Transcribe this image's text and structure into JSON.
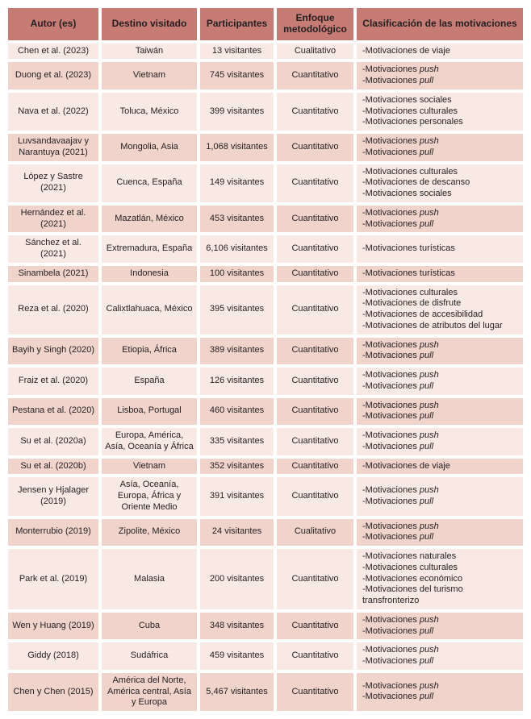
{
  "colors": {
    "header_bg": "#C67C74",
    "row_light": "#F9E9E4",
    "row_dark": "#F0D3CB",
    "text": "#231F20",
    "page_bg": "#FFFFFF"
  },
  "table": {
    "headers": [
      "Autor (es)",
      "Destino visitado",
      "Participantes",
      "Enfoque metodológico",
      "Clasificación de las motivaciones"
    ],
    "rows": [
      {
        "author": "Chen et al. (2023)",
        "destination": "Taiwán",
        "participants": "13 visitantes",
        "approach": "Cualitativo",
        "motivations": [
          [
            {
              "t": "-Motivaciones de viaje"
            }
          ]
        ]
      },
      {
        "author": "Duong et al. (2023)",
        "destination": "Vietnam",
        "participants": "745 visitantes",
        "approach": "Cuantitativo",
        "motivations": [
          [
            {
              "t": "-Motivaciones "
            },
            {
              "t": "push",
              "i": true
            }
          ],
          [
            {
              "t": "-Motivaciones "
            },
            {
              "t": "pull",
              "i": true
            }
          ]
        ]
      },
      {
        "author": "Nava et al. (2022)",
        "destination": "Toluca, México",
        "participants": "399 visitantes",
        "approach": "Cuantitativo",
        "motivations": [
          [
            {
              "t": "-Motivaciones sociales"
            }
          ],
          [
            {
              "t": "-Motivaciones culturales"
            }
          ],
          [
            {
              "t": "-Motivaciones personales"
            }
          ]
        ]
      },
      {
        "author": "Luvsandavaajav y Narantuya (2021)",
        "destination": "Mongolia, Asia",
        "participants": "1,068 visitantes",
        "approach": "Cuantitativo",
        "motivations": [
          [
            {
              "t": "-Motivaciones "
            },
            {
              "t": "push",
              "i": true
            }
          ],
          [
            {
              "t": "-Motivaciones "
            },
            {
              "t": "pull",
              "i": true
            }
          ]
        ]
      },
      {
        "author": "López y Sastre (2021)",
        "destination": "Cuenca, España",
        "participants": "149 visitantes",
        "approach": "Cuantitativo",
        "motivations": [
          [
            {
              "t": "-Motivaciones culturales"
            }
          ],
          [
            {
              "t": "-Motivaciones de descanso"
            }
          ],
          [
            {
              "t": "-Motivaciones sociales"
            }
          ]
        ]
      },
      {
        "author": "Hernández et al. (2021)",
        "destination": "Mazatlán, México",
        "participants": "453 visitantes",
        "approach": "Cuantitativo",
        "motivations": [
          [
            {
              "t": "-Motivaciones "
            },
            {
              "t": "push",
              "i": true
            }
          ],
          [
            {
              "t": "-Motivaciones "
            },
            {
              "t": "pull",
              "i": true
            }
          ]
        ]
      },
      {
        "author": "Sánchez et al. (2021)",
        "destination": "Extremadura, España",
        "participants": "6,106 visitantes",
        "approach": "Cuantitativo",
        "motivations": [
          [
            {
              "t": "-Motivaciones turísticas"
            }
          ]
        ]
      },
      {
        "author": "Sinambela (2021)",
        "destination": "Indonesia",
        "participants": "100 visitantes",
        "approach": "Cuantitativo",
        "motivations": [
          [
            {
              "t": "-Motivaciones turísticas"
            }
          ]
        ]
      },
      {
        "author": "Reza et al. (2020)",
        "destination": "Calixtlahuaca, México",
        "participants": "395 visitantes",
        "approach": "Cuantitativo",
        "motivations": [
          [
            {
              "t": "-Motivaciones culturales"
            }
          ],
          [
            {
              "t": "-Motivaciones de disfrute"
            }
          ],
          [
            {
              "t": "-Motivaciones de accesibilidad"
            }
          ],
          [
            {
              "t": "-Motivaciones de atributos del lugar"
            }
          ]
        ]
      },
      {
        "author": "Bayih y Singh (2020)",
        "destination": "Etiopia, África",
        "participants": "389 visitantes",
        "approach": "Cuantitativo",
        "motivations": [
          [
            {
              "t": "-Motivaciones "
            },
            {
              "t": "push",
              "i": true
            }
          ],
          [
            {
              "t": "-Motivaciones "
            },
            {
              "t": "pull",
              "i": true
            }
          ]
        ]
      },
      {
        "author": "Fraiz et al. (2020)",
        "destination": "España",
        "participants": "126 visitantes",
        "approach": "Cuantitativo",
        "motivations": [
          [
            {
              "t": "-Motivaciones "
            },
            {
              "t": "push",
              "i": true
            }
          ],
          [
            {
              "t": "-Motivaciones "
            },
            {
              "t": "pull",
              "i": true
            }
          ]
        ]
      },
      {
        "author": "Pestana et al. (2020)",
        "destination": "Lisboa, Portugal",
        "participants": "460 visitantes",
        "approach": "Cuantitativo",
        "motivations": [
          [
            {
              "t": "-Motivaciones "
            },
            {
              "t": "push",
              "i": true
            }
          ],
          [
            {
              "t": "-Motivaciones "
            },
            {
              "t": "pull",
              "i": true
            }
          ]
        ]
      },
      {
        "author": "Su et al. (2020a)",
        "destination": "Europa, América, Asía, Oceanía y África",
        "participants": "335 visitantes",
        "approach": "Cuantitativo",
        "motivations": [
          [
            {
              "t": "-Motivaciones "
            },
            {
              "t": "push",
              "i": true
            }
          ],
          [
            {
              "t": "-Motivaciones "
            },
            {
              "t": "pull",
              "i": true
            }
          ]
        ]
      },
      {
        "author": "Su et al. (2020b)",
        "destination": "Vietnam",
        "participants": "352 visitantes",
        "approach": "Cuantitativo",
        "motivations": [
          [
            {
              "t": "-Motivaciones de viaje"
            }
          ]
        ]
      },
      {
        "author": "Jensen y Hjalager (2019)",
        "destination": "Asía, Oceanía, Europa, África y Oriente Medio",
        "participants": "391 visitantes",
        "approach": "Cuantitativo",
        "motivations": [
          [
            {
              "t": "-Motivaciones "
            },
            {
              "t": "push",
              "i": true
            }
          ],
          [
            {
              "t": "-Motivaciones "
            },
            {
              "t": "pull",
              "i": true
            }
          ]
        ]
      },
      {
        "author": "Monterrubio (2019)",
        "destination": "Zipolite, México",
        "participants": "24 visitantes",
        "approach": "Cualitativo",
        "motivations": [
          [
            {
              "t": "-Motivaciones "
            },
            {
              "t": "push",
              "i": true
            }
          ],
          [
            {
              "t": "-Motivaciones "
            },
            {
              "t": "pull",
              "i": true
            }
          ]
        ]
      },
      {
        "author": "Park et al. (2019)",
        "destination": "Malasia",
        "participants": "200 visitantes",
        "approach": "Cuantitativo",
        "motivations": [
          [
            {
              "t": "-Motivaciones naturales"
            }
          ],
          [
            {
              "t": "-Motivaciones culturales"
            }
          ],
          [
            {
              "t": "-Motivaciones económico"
            }
          ],
          [
            {
              "t": "-Motivaciones del turismo transfronterizo"
            }
          ]
        ]
      },
      {
        "author": "Wen y Huang (2019)",
        "destination": "Cuba",
        "participants": "348 visitantes",
        "approach": "Cuantitativo",
        "motivations": [
          [
            {
              "t": "-Motivaciones "
            },
            {
              "t": "push",
              "i": true
            }
          ],
          [
            {
              "t": "-Motivaciones "
            },
            {
              "t": "pull",
              "i": true
            }
          ]
        ]
      },
      {
        "author": "Giddy (2018)",
        "destination": "Sudáfrica",
        "participants": "459 visitantes",
        "approach": "Cuantitativo",
        "motivations": [
          [
            {
              "t": "-Motivaciones "
            },
            {
              "t": "push",
              "i": true
            }
          ],
          [
            {
              "t": "-Motivaciones "
            },
            {
              "t": "pull",
              "i": true
            }
          ]
        ]
      },
      {
        "author": "Chen y Chen (2015)",
        "destination": "América del Norte, América central, Asía y Europa",
        "participants": "5,467 visitantes",
        "approach": "Cuantitativo",
        "motivations": [
          [
            {
              "t": "-Motivaciones "
            },
            {
              "t": "push",
              "i": true
            }
          ],
          [
            {
              "t": "-Motivaciones "
            },
            {
              "t": "pull",
              "i": true
            }
          ]
        ]
      }
    ]
  }
}
